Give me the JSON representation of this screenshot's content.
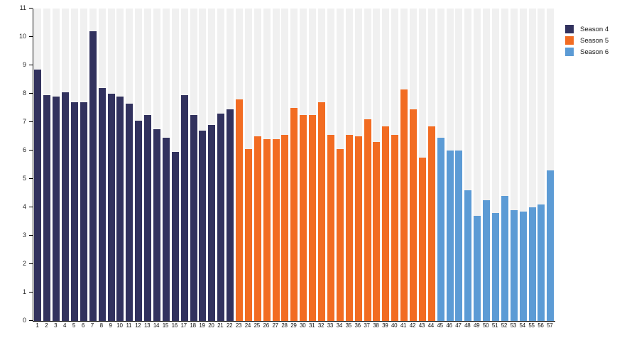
{
  "chart_data": {
    "type": "bar",
    "title": "",
    "xlabel": "",
    "ylabel": "",
    "ylim": [
      0,
      11
    ],
    "yticks": [
      0,
      1,
      2,
      3,
      4,
      5,
      6,
      7,
      8,
      9,
      10,
      11
    ],
    "grid": "striped-columns",
    "legend_position": "top-right",
    "categories": [
      1,
      2,
      3,
      4,
      5,
      6,
      7,
      8,
      9,
      10,
      11,
      12,
      13,
      14,
      15,
      16,
      17,
      18,
      19,
      20,
      21,
      22,
      23,
      24,
      25,
      26,
      27,
      28,
      29,
      30,
      31,
      32,
      33,
      34,
      35,
      36,
      37,
      38,
      39,
      40,
      41,
      42,
      43,
      44,
      45,
      46,
      47,
      48,
      49,
      50,
      51,
      52,
      53,
      54,
      55,
      56,
      57
    ],
    "series": [
      {
        "name": "Season 4",
        "color": "#32325E",
        "start_category": 1,
        "values": [
          8.85,
          7.95,
          7.9,
          8.05,
          7.7,
          7.7,
          10.2,
          8.2,
          8.0,
          7.9,
          7.65,
          7.05,
          7.25,
          6.75,
          6.45,
          5.95,
          7.95,
          7.25,
          6.7,
          6.9,
          7.3,
          7.45
        ]
      },
      {
        "name": "Season 5",
        "color": "#F26C22",
        "start_category": 23,
        "values": [
          7.8,
          6.05,
          6.5,
          6.4,
          6.4,
          6.55,
          7.5,
          7.25,
          7.25,
          7.7,
          6.55,
          6.05,
          6.55,
          6.5,
          7.1,
          6.3,
          6.85,
          6.55,
          8.15,
          7.45,
          5.75,
          6.85
        ]
      },
      {
        "name": "Season 6",
        "color": "#5C9BD5",
        "start_category": 45,
        "values": [
          6.45,
          6.0,
          6.0,
          4.6,
          3.7,
          4.25,
          3.8,
          4.4,
          3.9,
          3.85,
          4.0,
          4.1,
          5.3
        ]
      }
    ]
  },
  "legend": {
    "items": [
      {
        "label": "Season 4",
        "color": "#32325E"
      },
      {
        "label": "Season 5",
        "color": "#F26C22"
      },
      {
        "label": "Season 6",
        "color": "#5C9BD5"
      }
    ]
  },
  "style": {
    "stripe_color": "#F0F0F0",
    "axis_color": "#000000",
    "background_color": "#FFFFFF"
  }
}
